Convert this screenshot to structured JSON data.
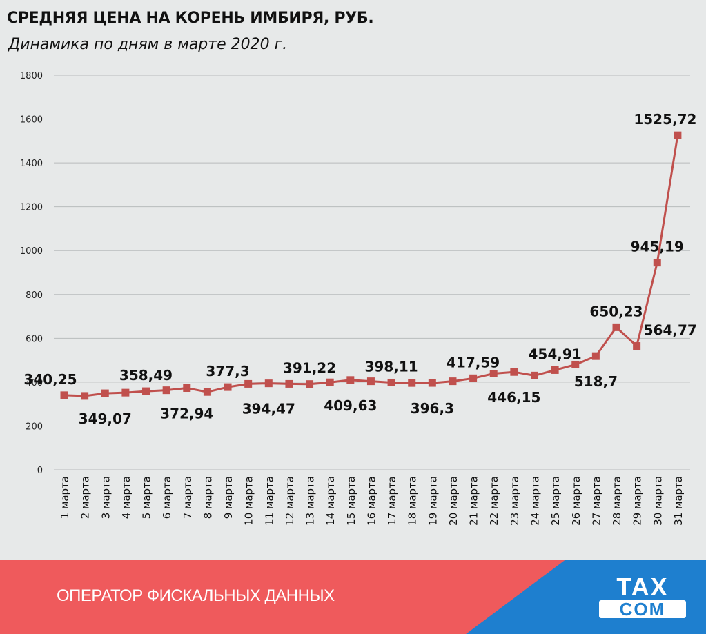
{
  "title": "СРЕДНЯЯ ЦЕНА НА КОРЕНЬ ИМБИРЯ, РУБ.",
  "subtitle": "Динамика по дням в марте 2020 г.",
  "footer": {
    "operator_text": "ОПЕРАТОР ФИСКАЛЬНЫХ ДАННЫХ"
  },
  "logo": {
    "line1": "TAX",
    "line2": "COM"
  },
  "colors": {
    "line": "#c0504d",
    "marker": "#c0504d",
    "footer_red": "#ef5a5c",
    "footer_blue": "#1e7fcf"
  },
  "chart_data": {
    "type": "line",
    "title": "СРЕДНЯЯ ЦЕНА НА КОРЕНЬ ИМБИРЯ, РУБ.",
    "subtitle": "Динамика по дням в марте 2020 г.",
    "xlabel": "",
    "ylabel": "",
    "ylim": [
      0,
      1800
    ],
    "yticks": [
      0,
      200,
      400,
      600,
      800,
      1000,
      1200,
      1400,
      1600,
      1800
    ],
    "grid": true,
    "legend": "none",
    "categories": [
      "1 марта",
      "2 марта",
      "3 марта",
      "4 марта",
      "5 марта",
      "6 марта",
      "7 марта",
      "8 марта",
      "9 марта",
      "10 марта",
      "11 марта",
      "12 марта",
      "13 марта",
      "14 марта",
      "15 марта",
      "16 марта",
      "17 марта",
      "18 марта",
      "19 марта",
      "20 марта",
      "21 марта",
      "22 марта",
      "23 марта",
      "24 марта",
      "25 марта",
      "26 марта",
      "27 марта",
      "28 марта",
      "29 марта",
      "30 марта",
      "31 марта"
    ],
    "series": [
      {
        "values": [
          340.25,
          337,
          349.07,
          352,
          358.49,
          363,
          372.94,
          355,
          377.3,
          392,
          394.47,
          392,
          391.22,
          399,
          409.63,
          404,
          398.11,
          396,
          396.3,
          404,
          417.59,
          439,
          446.15,
          430,
          454.91,
          480,
          518.7,
          650.23,
          564.77,
          945.19,
          1525.72
        ]
      }
    ],
    "data_labels": [
      {
        "index": 0,
        "text": "340,25",
        "position": "above"
      },
      {
        "index": 2,
        "text": "349,07",
        "position": "below"
      },
      {
        "index": 4,
        "text": "358,49",
        "position": "above"
      },
      {
        "index": 6,
        "text": "372,94",
        "position": "below"
      },
      {
        "index": 8,
        "text": "377,3",
        "position": "above"
      },
      {
        "index": 10,
        "text": "394,47",
        "position": "below"
      },
      {
        "index": 12,
        "text": "391,22",
        "position": "above"
      },
      {
        "index": 14,
        "text": "409,63",
        "position": "below"
      },
      {
        "index": 16,
        "text": "398,11",
        "position": "above"
      },
      {
        "index": 18,
        "text": "396,3",
        "position": "below"
      },
      {
        "index": 20,
        "text": "417,59",
        "position": "above"
      },
      {
        "index": 22,
        "text": "446,15",
        "position": "below"
      },
      {
        "index": 24,
        "text": "454,91",
        "position": "above"
      },
      {
        "index": 26,
        "text": "518,7",
        "position": "below"
      },
      {
        "index": 27,
        "text": "650,23",
        "position": "above"
      },
      {
        "index": 28,
        "text": "564,77",
        "position": "right"
      },
      {
        "index": 29,
        "text": "945,19",
        "position": "above"
      },
      {
        "index": 30,
        "text": "1525,72",
        "position": "above"
      }
    ]
  }
}
